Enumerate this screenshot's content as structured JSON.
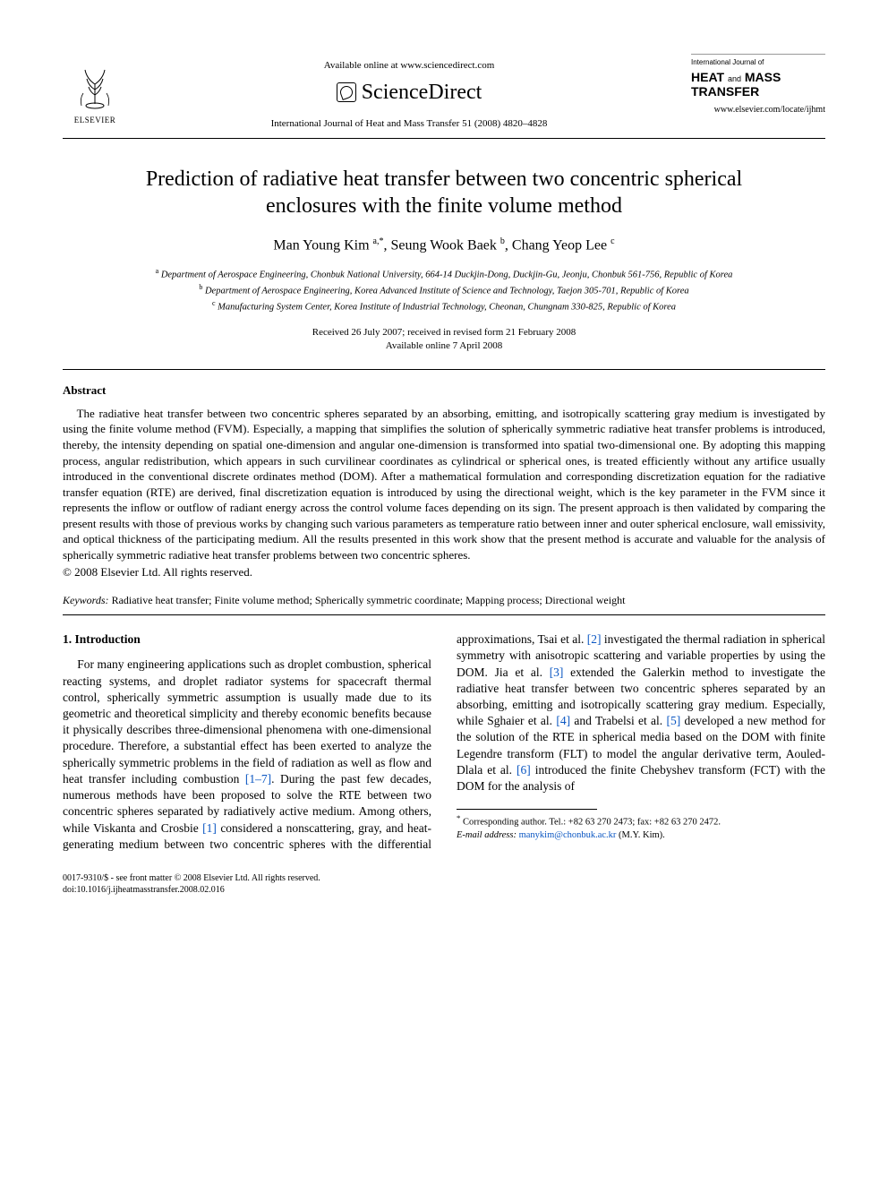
{
  "header": {
    "available_online": "Available online at www.sciencedirect.com",
    "brand": "ScienceDirect",
    "citation": "International Journal of Heat and Mass Transfer 51 (2008) 4820–4828",
    "journal_label_small": "International Journal of",
    "journal_heat": "HEAT",
    "journal_and": "and",
    "journal_mass": "MASS",
    "journal_transfer": "TRANSFER",
    "journal_url": "www.elsevier.com/locate/ijhmt",
    "elsevier_label": "ELSEVIER"
  },
  "title": "Prediction of radiative heat transfer between two concentric spherical enclosures with the finite volume method",
  "authors_html": "Man Young Kim <sup>a,*</sup>, Seung Wook Baek <sup>b</sup>, Chang Yeop Lee <sup>c</sup>",
  "affiliations": {
    "a": "Department of Aerospace Engineering, Chonbuk National University, 664-14 Duckjin-Dong, Duckjin-Gu, Jeonju, Chonbuk 561-756, Republic of Korea",
    "b": "Department of Aerospace Engineering, Korea Advanced Institute of Science and Technology, Taejon 305-701, Republic of Korea",
    "c": "Manufacturing System Center, Korea Institute of Industrial Technology, Cheonan, Chungnam 330-825, Republic of Korea"
  },
  "dates": {
    "line1": "Received 26 July 2007; received in revised form 21 February 2008",
    "line2": "Available online 7 April 2008"
  },
  "abstract": {
    "heading": "Abstract",
    "body": "The radiative heat transfer between two concentric spheres separated by an absorbing, emitting, and isotropically scattering gray medium is investigated by using the finite volume method (FVM). Especially, a mapping that simplifies the solution of spherically symmetric radiative heat transfer problems is introduced, thereby, the intensity depending on spatial one-dimension and angular one-dimension is transformed into spatial two-dimensional one. By adopting this mapping process, angular redistribution, which appears in such curvilinear coordinates as cylindrical or spherical ones, is treated efficiently without any artifice usually introduced in the conventional discrete ordinates method (DOM). After a mathematical formulation and corresponding discretization equation for the radiative transfer equation (RTE) are derived, final discretization equation is introduced by using the directional weight, which is the key parameter in the FVM since it represents the inflow or outflow of radiant energy across the control volume faces depending on its sign. The present approach is then validated by comparing the present results with those of previous works by changing such various parameters as temperature ratio between inner and outer spherical enclosure, wall emissivity, and optical thickness of the participating medium. All the results presented in this work show that the present method is accurate and valuable for the analysis of spherically symmetric radiative heat transfer problems between two concentric spheres.",
    "copyright": "© 2008 Elsevier Ltd. All rights reserved."
  },
  "keywords": {
    "label": "Keywords:",
    "values": "Radiative heat transfer; Finite volume method; Spherically symmetric coordinate; Mapping process; Directional weight"
  },
  "intro": {
    "heading": "1. Introduction",
    "p1_pre": "For many engineering applications such as droplet combustion, spherical reacting systems, and droplet radiator systems for spacecraft thermal control, spherically symmetric assumption is usually made due to its geometric and theoretical simplicity and thereby economic benefits because it physically describes three-dimensional phenomena with one-dimensional procedure. Therefore, a substantial effect has been exerted to analyze the spherically symmetric problems in the field of radiation as well as flow and heat transfer including combustion ",
    "ref_1_7": "[1–7]",
    "p1_post": ". During the past few decades, numerous methods have been proposed to solve the RTE",
    "p2_a": "between two concentric spheres separated by radiatively active medium. Among others, while Viskanta and Crosbie ",
    "ref_1": "[1]",
    "p2_b": " considered a nonscattering, gray, and heat-generating medium between two concentric spheres with the differential approximations, Tsai et al. ",
    "ref_2": "[2]",
    "p2_c": " investigated the thermal radiation in spherical symmetry with anisotropic scattering and variable properties by using the DOM. Jia et al. ",
    "ref_3": "[3]",
    "p2_d": " extended the Galerkin method to investigate the radiative heat transfer between two concentric spheres separated by an absorbing, emitting and isotropically scattering gray medium. Especially, while Sghaier et al. ",
    "ref_4": "[4]",
    "p2_e": " and Trabelsi et al. ",
    "ref_5": "[5]",
    "p2_f": " developed a new method for the solution of the RTE in spherical media based on the DOM with finite Legendre transform (FLT) to model the angular derivative term, Aouled-Dlala et al. ",
    "ref_6": "[6]",
    "p2_g": " introduced the finite Chebyshev transform (FCT) with the DOM for the analysis of"
  },
  "footnote": {
    "corresponding": "Corresponding author. Tel.: +82 63 270 2473; fax: +82 63 270 2472.",
    "email_label": "E-mail address:",
    "email": "manykim@chonbuk.ac.kr",
    "email_suffix": "(M.Y. Kim)."
  },
  "footer": {
    "line1": "0017-9310/$ - see front matter © 2008 Elsevier Ltd. All rights reserved.",
    "line2": "doi:10.1016/j.ijheatmasstransfer.2008.02.016"
  },
  "colors": {
    "link": "#0a56c2",
    "text": "#000000",
    "background": "#ffffff",
    "rule": "#000000"
  },
  "typography": {
    "body_font": "Times New Roman",
    "body_size_pt": 10,
    "title_size_pt": 18,
    "authors_size_pt": 12,
    "affil_size_pt": 8,
    "abstract_size_pt": 10,
    "footnote_size_pt": 8
  }
}
